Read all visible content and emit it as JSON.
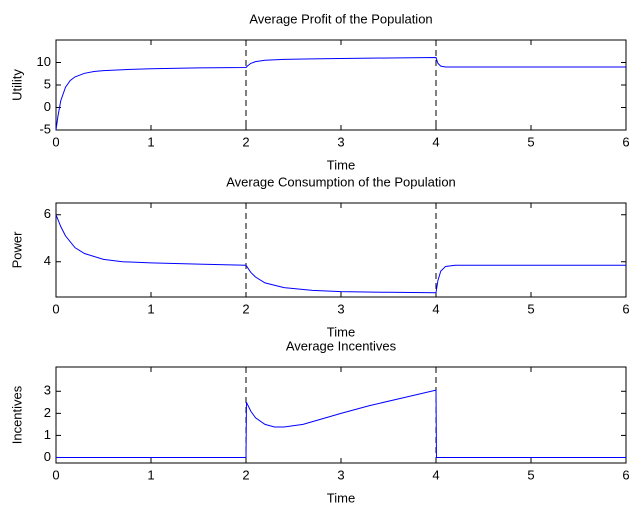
{
  "chart_data": [
    {
      "type": "line",
      "title": "Average Profit of the Population",
      "xlabel": "Time",
      "ylabel": "Utility",
      "x": [
        0,
        0.02,
        0.05,
        0.1,
        0.15,
        0.2,
        0.3,
        0.4,
        0.5,
        0.7,
        1,
        1.5,
        2,
        2.02,
        2.05,
        2.1,
        2.2,
        2.4,
        2.7,
        3,
        3.5,
        4,
        4.02,
        4.05,
        4.1,
        4.2,
        4.5,
        5,
        6
      ],
      "values": [
        -5,
        -2,
        1.5,
        4.5,
        6,
        6.8,
        7.6,
        8,
        8.2,
        8.4,
        8.6,
        8.8,
        8.9,
        9.3,
        9.8,
        10.2,
        10.5,
        10.7,
        10.8,
        10.9,
        11,
        11.1,
        9.8,
        9.2,
        9,
        9,
        9,
        9,
        9
      ],
      "color": "#0000ff",
      "xlim": [
        0,
        6
      ],
      "xticks": [
        0,
        1,
        2,
        3,
        4,
        5,
        6
      ],
      "ylim": [
        -5,
        15
      ],
      "yticks": [
        -5,
        0,
        5,
        10
      ],
      "vlines": [
        2,
        4
      ]
    },
    {
      "type": "line",
      "title": "Average Consumption of the Population",
      "xlabel": "Time",
      "ylabel": "Power",
      "x": [
        0,
        0.05,
        0.1,
        0.2,
        0.3,
        0.5,
        0.7,
        1,
        1.5,
        2,
        2.05,
        2.1,
        2.2,
        2.4,
        2.7,
        3,
        3.5,
        4,
        4.02,
        4.05,
        4.1,
        4.2,
        5,
        6
      ],
      "values": [
        6,
        5.5,
        5.1,
        4.6,
        4.35,
        4.1,
        4.0,
        3.95,
        3.9,
        3.85,
        3.55,
        3.35,
        3.1,
        2.9,
        2.78,
        2.73,
        2.7,
        2.68,
        3.2,
        3.6,
        3.8,
        3.85,
        3.85,
        3.85
      ],
      "color": "#0000ff",
      "xlim": [
        0,
        6
      ],
      "xticks": [
        0,
        1,
        2,
        3,
        4,
        5,
        6
      ],
      "ylim": [
        2.5,
        6.5
      ],
      "yticks": [
        4,
        6
      ],
      "vlines": [
        2,
        4
      ]
    },
    {
      "type": "line",
      "title": "Average Incentives",
      "xlabel": "Time",
      "ylabel": "Incentives",
      "x": [
        0,
        2,
        2.005,
        2.05,
        2.1,
        2.2,
        2.3,
        2.4,
        2.6,
        2.8,
        3,
        3.3,
        3.6,
        4,
        4.005,
        6
      ],
      "values": [
        0,
        0,
        2.5,
        2.1,
        1.8,
        1.5,
        1.38,
        1.38,
        1.5,
        1.75,
        2.0,
        2.35,
        2.65,
        3.05,
        0,
        0
      ],
      "color": "#0000ff",
      "xlim": [
        0,
        6
      ],
      "xticks": [
        0,
        1,
        2,
        3,
        4,
        5,
        6
      ],
      "ylim": [
        -0.25,
        4.1
      ],
      "yticks": [
        0,
        1,
        2,
        3
      ],
      "vlines": [
        2,
        4
      ]
    }
  ]
}
